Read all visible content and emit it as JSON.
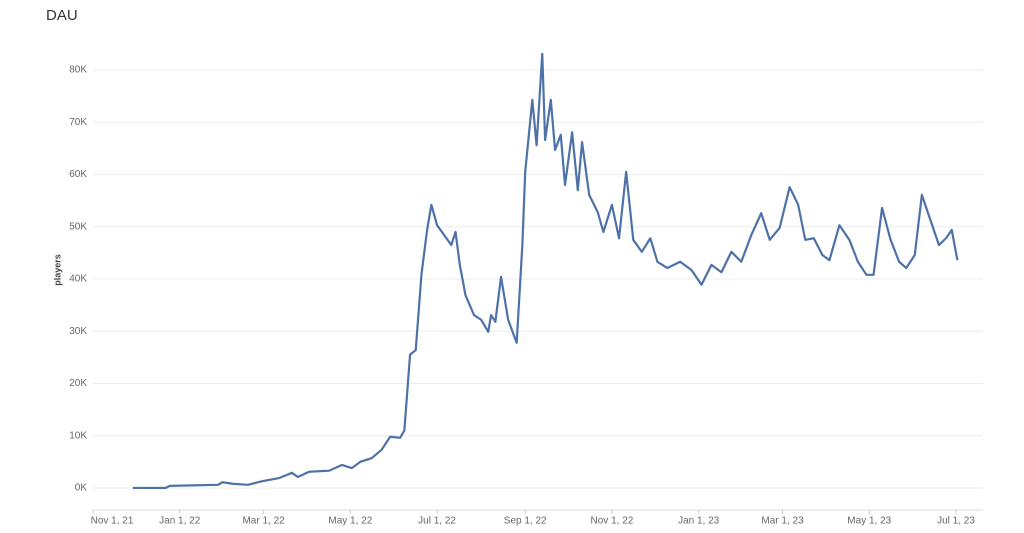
{
  "chart_data": {
    "type": "line",
    "title": "DAU",
    "y_label": "players",
    "x": [
      "2021-11-29",
      "2021-12-22",
      "2021-12-25",
      "2022-01-28",
      "2022-01-31",
      "2022-02-07",
      "2022-02-18",
      "2022-02-28",
      "2022-03-12",
      "2022-03-21",
      "2022-03-25",
      "2022-04-02",
      "2022-04-16",
      "2022-04-25",
      "2022-05-02",
      "2022-05-08",
      "2022-05-16",
      "2022-05-23",
      "2022-05-29",
      "2022-06-05",
      "2022-06-08",
      "2022-06-12",
      "2022-06-16",
      "2022-06-20",
      "2022-06-24",
      "2022-06-27",
      "2022-07-01",
      "2022-07-06",
      "2022-07-11",
      "2022-07-14",
      "2022-07-17",
      "2022-07-21",
      "2022-07-27",
      "2022-08-01",
      "2022-08-06",
      "2022-08-08",
      "2022-08-11",
      "2022-08-15",
      "2022-08-20",
      "2022-08-26",
      "2022-08-30",
      "2022-09-01",
      "2022-09-06",
      "2022-09-09",
      "2022-09-13",
      "2022-09-15",
      "2022-09-19",
      "2022-09-22",
      "2022-09-26",
      "2022-09-29",
      "2022-10-04",
      "2022-10-08",
      "2022-10-11",
      "2022-10-16",
      "2022-10-22",
      "2022-10-26",
      "2022-11-01",
      "2022-11-06",
      "2022-11-11",
      "2022-11-16",
      "2022-11-22",
      "2022-11-28",
      "2022-12-03",
      "2022-12-10",
      "2022-12-19",
      "2022-12-27",
      "2023-01-03",
      "2023-01-10",
      "2023-01-17",
      "2023-01-24",
      "2023-01-31",
      "2023-02-07",
      "2023-02-14",
      "2023-02-20",
      "2023-02-27",
      "2023-03-06",
      "2023-03-12",
      "2023-03-17",
      "2023-03-23",
      "2023-03-29",
      "2023-04-03",
      "2023-04-10",
      "2023-04-17",
      "2023-04-23",
      "2023-04-29",
      "2023-05-04",
      "2023-05-10",
      "2023-05-16",
      "2023-05-22",
      "2023-05-27",
      "2023-06-02",
      "2023-06-07",
      "2023-06-13",
      "2023-06-19",
      "2023-06-24",
      "2023-06-28",
      "2023-07-02"
    ],
    "series": [
      {
        "name": "players",
        "color": "#4e72a8",
        "values": [
          0,
          0,
          400,
          600,
          1100,
          800,
          600,
          1300,
          1900,
          2900,
          2100,
          3100,
          3300,
          4400,
          3800,
          5000,
          5700,
          7300,
          9800,
          9600,
          11000,
          25500,
          26400,
          40800,
          49400,
          54200,
          50300,
          48400,
          46500,
          49000,
          42700,
          36900,
          33100,
          32200,
          29900,
          33100,
          31800,
          40400,
          32200,
          27800,
          46500,
          60500,
          74300,
          65600,
          83100,
          66600,
          74300,
          64700,
          67600,
          58000,
          68100,
          57000,
          66200,
          56100,
          52800,
          49000,
          54200,
          47800,
          60500,
          47500,
          45200,
          47800,
          43300,
          42100,
          43300,
          41700,
          38900,
          42700,
          41300,
          45200,
          43300,
          48400,
          52600,
          47500,
          49800,
          57600,
          54200,
          47500,
          47800,
          44600,
          43600,
          50300,
          47500,
          43300,
          40800,
          40800,
          53600,
          47500,
          43300,
          42100,
          44600,
          56100,
          51300,
          46500,
          47800,
          49400,
          43600
        ]
      }
    ],
    "xlim": [
      "2021-11-01",
      "2023-07-20"
    ],
    "xticks": [
      {
        "value": "2021-11-01",
        "label": "Nov 1, 21"
      },
      {
        "value": "2022-01-01",
        "label": "Jan 1, 22"
      },
      {
        "value": "2022-03-01",
        "label": "Mar 1, 22"
      },
      {
        "value": "2022-05-01",
        "label": "May 1, 22"
      },
      {
        "value": "2022-07-01",
        "label": "Jul 1, 22"
      },
      {
        "value": "2022-09-01",
        "label": "Sep 1, 22"
      },
      {
        "value": "2022-11-01",
        "label": "Nov 1, 22"
      },
      {
        "value": "2023-01-01",
        "label": "Jan 1, 23"
      },
      {
        "value": "2023-03-01",
        "label": "Mar 1, 23"
      },
      {
        "value": "2023-05-01",
        "label": "May 1, 23"
      },
      {
        "value": "2023-07-01",
        "label": "Jul 1, 23"
      }
    ],
    "ylim": [
      -2000,
      86000
    ],
    "yticks": [
      {
        "value": 0,
        "label": "0K"
      },
      {
        "value": 10000,
        "label": "10K"
      },
      {
        "value": 20000,
        "label": "20K"
      },
      {
        "value": 30000,
        "label": "30K"
      },
      {
        "value": 40000,
        "label": "40K"
      },
      {
        "value": 50000,
        "label": "50K"
      },
      {
        "value": 60000,
        "label": "60K"
      },
      {
        "value": 70000,
        "label": "70K"
      },
      {
        "value": 80000,
        "label": "80K"
      }
    ],
    "grid": true
  }
}
